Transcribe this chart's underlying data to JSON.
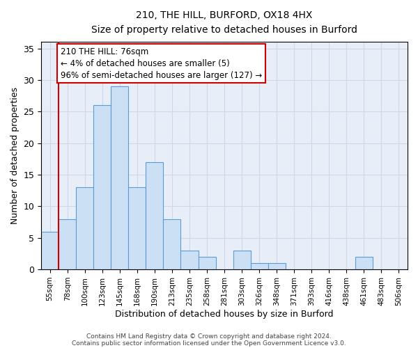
{
  "title1": "210, THE HILL, BURFORD, OX18 4HX",
  "title2": "Size of property relative to detached houses in Burford",
  "xlabel": "Distribution of detached houses by size in Burford",
  "ylabel": "Number of detached properties",
  "bar_labels": [
    "55sqm",
    "78sqm",
    "100sqm",
    "123sqm",
    "145sqm",
    "168sqm",
    "190sqm",
    "213sqm",
    "235sqm",
    "258sqm",
    "281sqm",
    "303sqm",
    "326sqm",
    "348sqm",
    "371sqm",
    "393sqm",
    "416sqm",
    "438sqm",
    "461sqm",
    "483sqm",
    "506sqm"
  ],
  "bar_heights": [
    6,
    8,
    13,
    26,
    29,
    13,
    17,
    8,
    3,
    2,
    0,
    3,
    1,
    1,
    0,
    0,
    0,
    0,
    2,
    0,
    0
  ],
  "bar_color": "#cce0f5",
  "bar_edge_color": "#5b9bd5",
  "red_line_x": 0.5,
  "red_line_color": "#cc0000",
  "annotation_line1": "210 THE HILL: 76sqm",
  "annotation_line2": "← 4% of detached houses are smaller (5)",
  "annotation_line3": "96% of semi-detached houses are larger (127) →",
  "annotation_box_color": "#ffffff",
  "annotation_box_edge": "#cc0000",
  "ylim": [
    0,
    36
  ],
  "yticks": [
    0,
    5,
    10,
    15,
    20,
    25,
    30,
    35
  ],
  "grid_color": "#d0d8e8",
  "bg_color": "#e8eef8",
  "footer1": "Contains HM Land Registry data © Crown copyright and database right 2024.",
  "footer2": "Contains public sector information licensed under the Open Government Licence v3.0."
}
